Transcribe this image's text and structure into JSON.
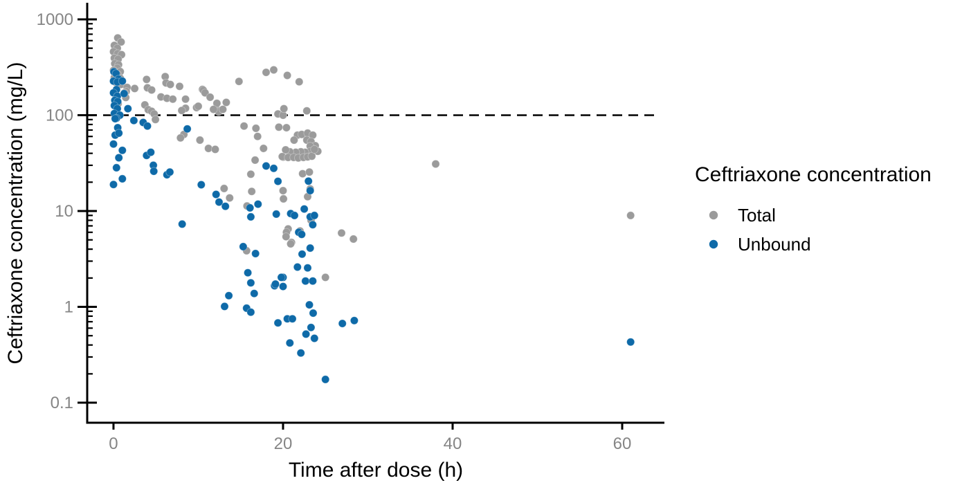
{
  "chart_data": {
    "type": "scatter",
    "title": "",
    "xlabel": "Time after dose (h)",
    "ylabel": "Ceftriaxone concentration (mg/L)",
    "x_axis": {
      "ticks": [
        0,
        20,
        40,
        60
      ],
      "range": [
        -3.1,
        64.98
      ],
      "scale": "linear"
    },
    "y_axis": {
      "ticks": [
        {
          "value": 1000,
          "label": "1000"
        },
        {
          "value": 100,
          "label": "100"
        },
        {
          "value": 10,
          "label": "10"
        },
        {
          "value": 1,
          "label": "1"
        },
        {
          "value": 0.1,
          "label": "0.1"
        }
      ],
      "range": [
        0.0618,
        1441
      ],
      "scale": "log",
      "minor_tick_multiples": [
        2,
        3,
        4,
        5,
        6,
        7,
        8,
        9
      ]
    },
    "reference_line": {
      "y": 100,
      "style": "dashed",
      "color": "#000000"
    },
    "grid": "off",
    "legend": {
      "position": "right",
      "title": "Ceftriaxone concentration",
      "entries": [
        {
          "label": "Total",
          "color": "#9b9b9b"
        },
        {
          "label": "Unbound",
          "color": "#0e6aa8"
        }
      ]
    },
    "series": [
      {
        "name": "Total",
        "color": "#9b9b9b",
        "points": [
          [
            0.5,
            640
          ],
          [
            0.9,
            580
          ],
          [
            0.1,
            535
          ],
          [
            0.45,
            500
          ],
          [
            0.0,
            460
          ],
          [
            0.5,
            440
          ],
          [
            0.95,
            428
          ],
          [
            0.1,
            395
          ],
          [
            0.55,
            384
          ],
          [
            0.15,
            345
          ],
          [
            0.6,
            336
          ],
          [
            0.45,
            310
          ],
          [
            0.0,
            293
          ],
          [
            0.8,
            285
          ],
          [
            0.5,
            266
          ],
          [
            0.1,
            247
          ],
          [
            0.8,
            243
          ],
          [
            0.5,
            225
          ],
          [
            0.25,
            221
          ],
          [
            0.9,
            209
          ],
          [
            1.6,
            195
          ],
          [
            1.5,
            177
          ],
          [
            1.3,
            171
          ],
          [
            1.45,
            153
          ],
          [
            0.55,
            132
          ],
          [
            2.5,
            190
          ],
          [
            3.9,
            236
          ],
          [
            4.0,
            193
          ],
          [
            4.5,
            183
          ],
          [
            6.1,
            253
          ],
          [
            6.2,
            217
          ],
          [
            5.6,
            155
          ],
          [
            6.3,
            150
          ],
          [
            3.7,
            128
          ],
          [
            4.1,
            114
          ],
          [
            4.5,
            110
          ],
          [
            4.8,
            103
          ],
          [
            4.95,
            90
          ],
          [
            6.7,
            209
          ],
          [
            7.8,
            200
          ],
          [
            7.0,
            147
          ],
          [
            8.5,
            147
          ],
          [
            8.5,
            118
          ],
          [
            8.05,
            112
          ],
          [
            8.3,
            63
          ],
          [
            7.9,
            58
          ],
          [
            9.8,
            120
          ],
          [
            10.5,
            186
          ],
          [
            10.6,
            182
          ],
          [
            10.8,
            171
          ],
          [
            11.4,
            154
          ],
          [
            10.0,
            124
          ],
          [
            12.1,
            117
          ],
          [
            12.4,
            109
          ],
          [
            12.2,
            133
          ],
          [
            11.8,
            115
          ],
          [
            12.9,
            115
          ],
          [
            13.3,
            136
          ],
          [
            14.8,
            225
          ],
          [
            13.05,
            17.2
          ],
          [
            13.7,
            13.7
          ],
          [
            10.2,
            55
          ],
          [
            11.2,
            45
          ],
          [
            12.0,
            44
          ],
          [
            18.0,
            280
          ],
          [
            18.9,
            297
          ],
          [
            20.5,
            260
          ],
          [
            21.9,
            223
          ],
          [
            15.4,
            77
          ],
          [
            16.8,
            73
          ],
          [
            17.0,
            60
          ],
          [
            17.7,
            45
          ],
          [
            16.7,
            34
          ],
          [
            16.2,
            24.2
          ],
          [
            16.3,
            16
          ],
          [
            15.75,
            11.3
          ],
          [
            20.0,
            16.3
          ],
          [
            20.05,
            13.4
          ],
          [
            20.0,
            36.5
          ],
          [
            19.4,
            103
          ],
          [
            20.0,
            100
          ],
          [
            22.8,
            111
          ],
          [
            20.1,
            117
          ],
          [
            19.5,
            75
          ],
          [
            20.4,
            74
          ],
          [
            21.7,
            62
          ],
          [
            22.2,
            63
          ],
          [
            22.9,
            65
          ],
          [
            23.5,
            62
          ],
          [
            21.3,
            55
          ],
          [
            22.8,
            55
          ],
          [
            23.3,
            53
          ],
          [
            23.8,
            48
          ],
          [
            23.2,
            47.5
          ],
          [
            24.1,
            42
          ],
          [
            23.2,
            42
          ],
          [
            22.6,
            41
          ],
          [
            22.1,
            41.5
          ],
          [
            21.5,
            41
          ],
          [
            20.8,
            41.5
          ],
          [
            20.3,
            43.5
          ],
          [
            19.9,
            37
          ],
          [
            20.6,
            36.3
          ],
          [
            21.25,
            36.3
          ],
          [
            21.8,
            35.8
          ],
          [
            22.4,
            36.3
          ],
          [
            22.9,
            36.7
          ],
          [
            23.4,
            37.3
          ],
          [
            23.7,
            44
          ],
          [
            22.3,
            24.5
          ],
          [
            23.1,
            25.5
          ],
          [
            23.2,
            17
          ],
          [
            22.9,
            14.1
          ],
          [
            23.3,
            8.0
          ],
          [
            22.0,
            6.2
          ],
          [
            20.6,
            6.5
          ],
          [
            20.4,
            6.0
          ],
          [
            20.35,
            5.4
          ],
          [
            21.0,
            4.7
          ],
          [
            20.9,
            4.55
          ],
          [
            25.0,
            2.03
          ],
          [
            15.7,
            3.85
          ],
          [
            26.9,
            5.9
          ],
          [
            28.3,
            5.1
          ],
          [
            38.0,
            31
          ],
          [
            61.0,
            9.0
          ]
        ]
      },
      {
        "name": "Unbound",
        "color": "#0e6aa8",
        "points": [
          [
            0.05,
            284
          ],
          [
            0.3,
            272
          ],
          [
            0.6,
            238
          ],
          [
            0.0,
            227
          ],
          [
            0.45,
            222
          ],
          [
            1.05,
            227
          ],
          [
            0.35,
            185
          ],
          [
            0.0,
            171
          ],
          [
            0.45,
            158
          ],
          [
            0.16,
            143
          ],
          [
            0.5,
            139
          ],
          [
            0.1,
            126
          ],
          [
            0.45,
            117
          ],
          [
            1.7,
            117
          ],
          [
            0.1,
            104
          ],
          [
            0.75,
            100
          ],
          [
            0.35,
            93
          ],
          [
            1.25,
            168
          ],
          [
            0.2,
            92
          ],
          [
            0.5,
            74
          ],
          [
            0.2,
            62
          ],
          [
            0.63,
            65
          ],
          [
            0.0,
            50
          ],
          [
            1.05,
            43
          ],
          [
            0.63,
            36
          ],
          [
            0.35,
            28.3
          ],
          [
            1.05,
            21.7
          ],
          [
            0.0,
            18.9
          ],
          [
            2.4,
            88
          ],
          [
            3.5,
            84
          ],
          [
            4.0,
            77
          ],
          [
            3.9,
            38
          ],
          [
            4.4,
            41
          ],
          [
            4.7,
            30
          ],
          [
            4.75,
            26
          ],
          [
            6.3,
            23.9
          ],
          [
            6.65,
            25.5
          ],
          [
            8.7,
            72
          ],
          [
            8.1,
            7.3
          ],
          [
            10.35,
            18.8
          ],
          [
            12.1,
            14.9
          ],
          [
            12.45,
            12.4
          ],
          [
            13.2,
            11.2
          ],
          [
            13.6,
            1.31
          ],
          [
            13.1,
            1.01
          ],
          [
            15.3,
            4.25
          ],
          [
            16.75,
            3.6
          ],
          [
            15.85,
            2.27
          ],
          [
            16.2,
            1.78
          ],
          [
            16.6,
            1.38
          ],
          [
            15.7,
            0.97
          ],
          [
            16.2,
            0.88
          ],
          [
            16.1,
            10.8
          ],
          [
            17.05,
            11.8
          ],
          [
            16.2,
            8.7
          ],
          [
            18.0,
            29.5
          ],
          [
            18.9,
            27.9
          ],
          [
            19.4,
            20.4
          ],
          [
            19.0,
            1.66
          ],
          [
            19.4,
            0.68
          ],
          [
            19.2,
            9.3
          ],
          [
            23.0,
            20.5
          ],
          [
            23.2,
            16.3
          ],
          [
            22.5,
            10.5
          ],
          [
            20.9,
            9.4
          ],
          [
            21.35,
            9.0
          ],
          [
            23.2,
            8.7
          ],
          [
            23.7,
            9.0
          ],
          [
            23.5,
            7.2
          ],
          [
            21.85,
            6.0
          ],
          [
            22.2,
            5.7
          ],
          [
            23.2,
            4.1
          ],
          [
            22.25,
            3.55
          ],
          [
            21.7,
            2.6
          ],
          [
            22.9,
            2.55
          ],
          [
            22.65,
            1.86
          ],
          [
            23.5,
            1.86
          ],
          [
            20.0,
            2.03
          ],
          [
            19.8,
            2.03
          ],
          [
            20.0,
            1.63
          ],
          [
            19.1,
            1.73
          ],
          [
            23.1,
            1.05
          ],
          [
            23.55,
            0.86
          ],
          [
            20.5,
            0.75
          ],
          [
            21.1,
            0.75
          ],
          [
            23.3,
            0.61
          ],
          [
            22.7,
            0.52
          ],
          [
            23.7,
            0.47
          ],
          [
            20.8,
            0.42
          ],
          [
            22.1,
            0.33
          ],
          [
            25.0,
            0.175
          ],
          [
            27.0,
            0.67
          ],
          [
            28.4,
            0.72
          ],
          [
            61.0,
            0.43
          ]
        ]
      }
    ]
  }
}
